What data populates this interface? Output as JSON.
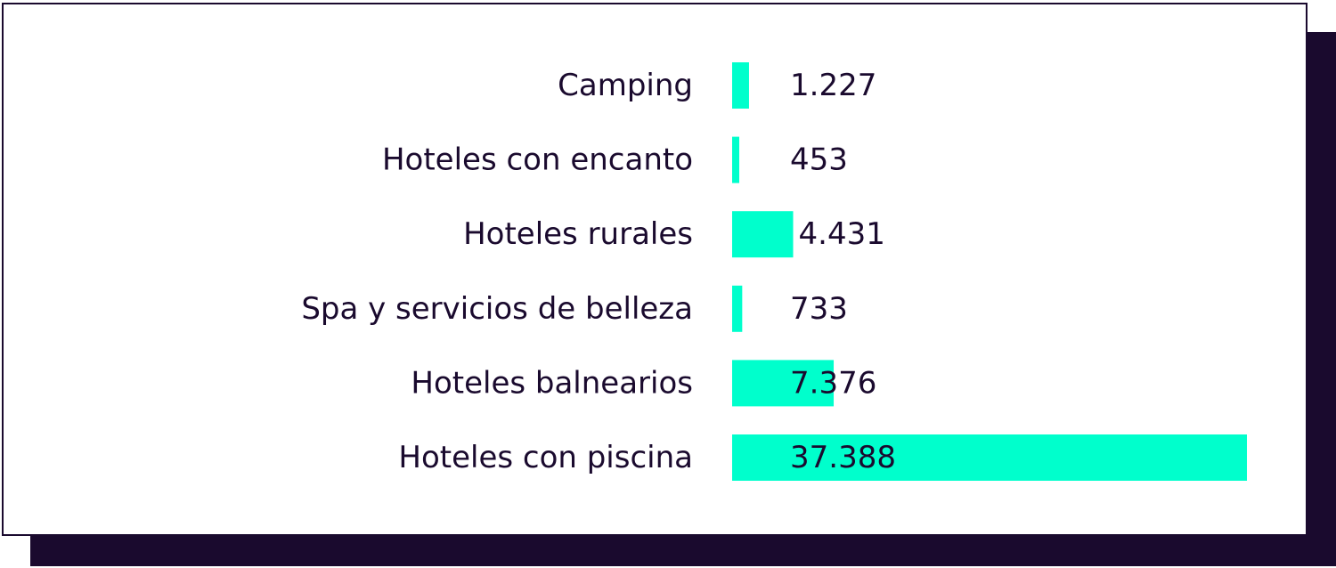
{
  "chart_data": {
    "type": "bar",
    "orientation": "horizontal",
    "categories": [
      "Camping",
      "Hoteles con encanto",
      "Hoteles rurales",
      "Spa y servicios de belleza",
      "Hoteles balnearios",
      "Hoteles con piscina"
    ],
    "values": [
      1227,
      453,
      4431,
      733,
      7376,
      37388
    ],
    "value_labels": [
      "1.227",
      "453",
      "4.431",
      "733",
      "7.376",
      "37.388"
    ],
    "bar_color": "#00ffcc",
    "text_color": "#1a0a2e",
    "shadow_color": "#1a0a2e",
    "grid": false,
    "legend": "none"
  }
}
